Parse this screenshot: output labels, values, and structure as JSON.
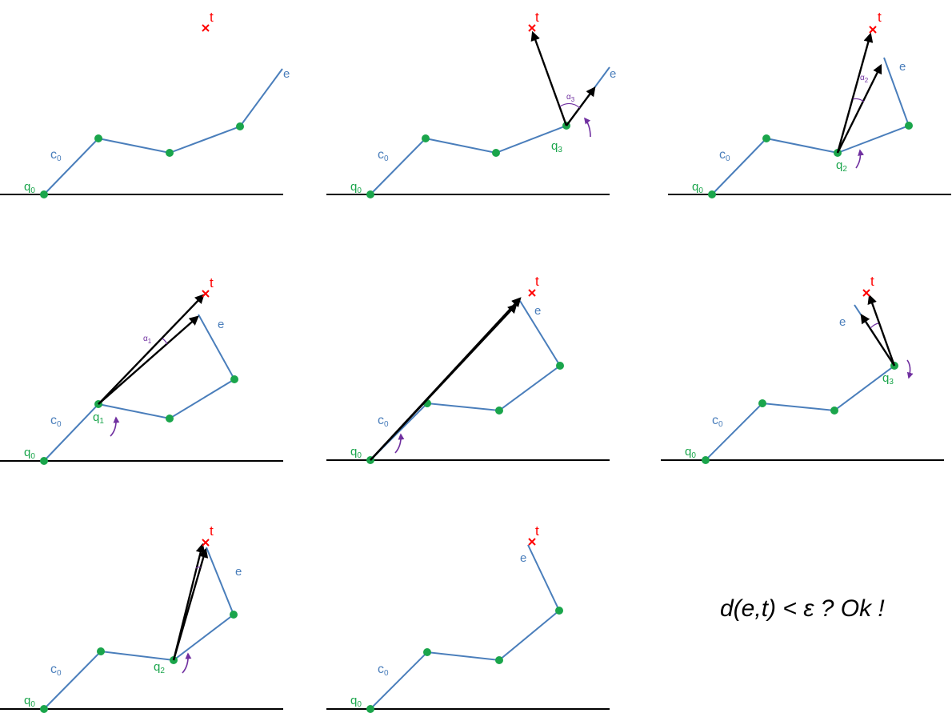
{
  "labels": {
    "target": "t",
    "end_effector": "e",
    "chain_base": "c",
    "chain_base_sub": "0",
    "joint": "q",
    "angle": "α"
  },
  "panels": [
    {
      "joint_label_sub": "0"
    },
    {
      "joint_label_sub": "3",
      "angle_sub": "3"
    },
    {
      "joint_label_sub": "2",
      "angle_sub": "2"
    },
    {
      "joint_label_sub": "1",
      "angle_sub": "1"
    },
    {},
    {
      "joint_label_sub": "3"
    },
    {
      "joint_label_sub": "2"
    },
    {}
  ],
  "conclusion": "d(e,t) < ε ? Ok !"
}
